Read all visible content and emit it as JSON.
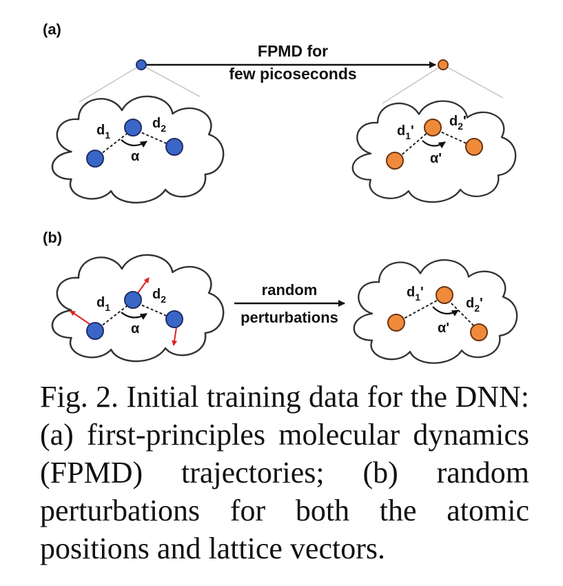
{
  "panel_a": {
    "label": "(a)",
    "arrow_label_line1": "FPMD for",
    "arrow_label_line2": "few picoseconds",
    "left_cloud": {
      "d1": "d",
      "d1_sub": "1",
      "d2": "d",
      "d2_sub": "2",
      "angle": "α"
    },
    "right_cloud": {
      "d1": "d",
      "d1_sub": "1",
      "d1_prime": "'",
      "d2": "d",
      "d2_sub": "2",
      "d2_prime": "'",
      "angle": "α'"
    }
  },
  "panel_b": {
    "label": "(b)",
    "arrow_label_line1": "random",
    "arrow_label_line2": "perturbations",
    "left_cloud": {
      "d1": "d",
      "d1_sub": "1",
      "d2": "d",
      "d2_sub": "2",
      "angle": "α"
    },
    "right_cloud": {
      "d1": "d",
      "d1_sub": "1",
      "d1_prime": "'",
      "d2": "d",
      "d2_sub": "2",
      "d2_prime": "'",
      "angle": "α'"
    }
  },
  "colors": {
    "blue_atom": "#3a66c8",
    "orange_atom": "#f08a3b",
    "perturbation_arrow": "#e02020"
  },
  "caption": "Fig. 2. Initial training data for the DNN: (a) first-principles molecular dynamics (FPMD) trajectories; (b) random perturbations for both the atomic positions and lattice vectors."
}
